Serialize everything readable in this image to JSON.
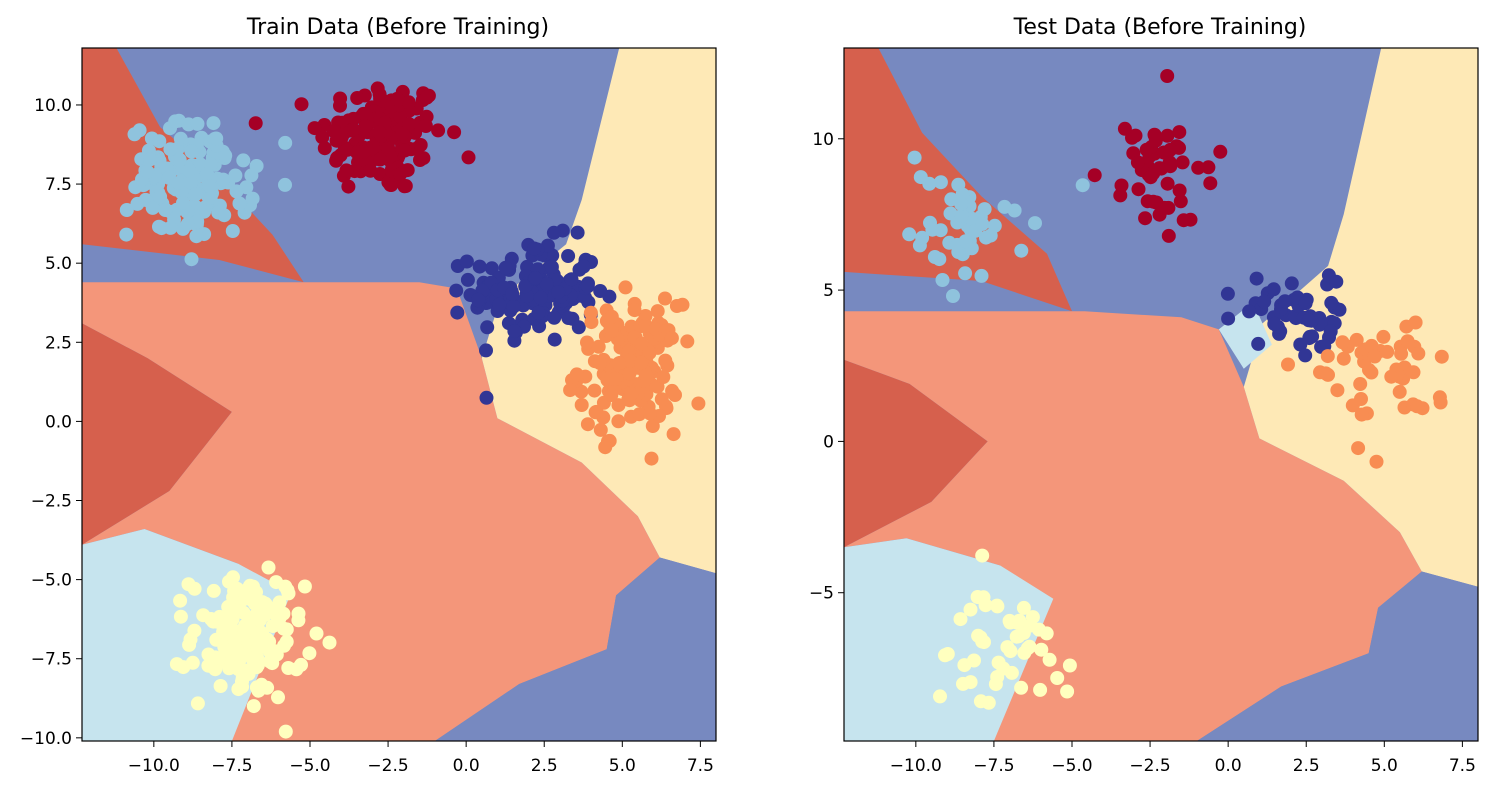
{
  "charts": [
    {
      "type": "scatter",
      "title": "Train Data (Before Training)",
      "xlabel": "",
      "ylabel": "",
      "xlim": [
        -12.3,
        8.0
      ],
      "ylim": [
        -10.1,
        11.8
      ],
      "x_ticks": [
        -10.0,
        -7.5,
        -5.0,
        -2.5,
        0.0,
        2.5,
        5.0,
        7.5
      ],
      "x_tick_labels": [
        "−10.0",
        "−7.5",
        "−5.0",
        "−2.5",
        "0.0",
        "2.5",
        "5.0",
        "7.5"
      ],
      "y_ticks": [
        -10.0,
        -7.5,
        -5.0,
        -2.5,
        0.0,
        2.5,
        5.0,
        7.5,
        10.0
      ],
      "y_tick_labels": [
        "−10.0",
        "−7.5",
        "−5.0",
        "−2.5",
        "0.0",
        "2.5",
        "5.0",
        "7.5",
        "10.0"
      ],
      "grid": false,
      "legend": "none",
      "points_per_cluster": 150,
      "clusters": [
        {
          "class": 0,
          "color": "#a50026",
          "center": [
            -2.7,
            9.0
          ],
          "spread": [
            1.0,
            0.9
          ]
        },
        {
          "class": 1,
          "color": "#313695",
          "center": [
            2.2,
            4.1
          ],
          "spread": [
            1.0,
            0.8
          ]
        },
        {
          "class": 2,
          "color": "#f88d52",
          "center": [
            5.2,
            1.7
          ],
          "spread": [
            0.8,
            1.0
          ]
        },
        {
          "class": 3,
          "color": "#8fc3dd",
          "center": [
            -8.8,
            7.6
          ],
          "spread": [
            1.0,
            0.9
          ]
        },
        {
          "class": 4,
          "color": "#ffffbf",
          "center": [
            -7.0,
            -6.8
          ],
          "spread": [
            0.9,
            1.0
          ]
        }
      ],
      "regions": [
        {
          "class": "light-red",
          "color": "#d6604d",
          "polygon": [
            [
              -12.3,
              11.8
            ],
            [
              -11.2,
              11.8
            ],
            [
              -9.8,
              9.3
            ],
            [
              -7.9,
              7.7
            ],
            [
              -6.2,
              5.9
            ],
            [
              -5.2,
              4.4
            ],
            [
              -7.9,
              5.1
            ],
            [
              -12.3,
              5.6
            ]
          ]
        },
        {
          "class": "light-red",
          "color": "#d6604d",
          "polygon": [
            [
              -12.3,
              3.1
            ],
            [
              -10.2,
              2.0
            ],
            [
              -7.5,
              0.3
            ],
            [
              -9.5,
              -2.2
            ],
            [
              -12.3,
              -3.9
            ]
          ]
        },
        {
          "class": "salmon",
          "color": "#f4967a",
          "polygon": [
            [
              -12.3,
              -3.9
            ],
            [
              -9.5,
              -2.2
            ],
            [
              -7.5,
              0.3
            ],
            [
              -10.2,
              2.0
            ],
            [
              -12.3,
              3.1
            ],
            [
              -12.3,
              4.4
            ],
            [
              -6.5,
              4.4
            ],
            [
              -4.6,
              4.4
            ],
            [
              -1.5,
              4.4
            ],
            [
              -0.3,
              4.2
            ],
            [
              0.5,
              2.0
            ],
            [
              1.0,
              0.1
            ],
            [
              3.7,
              -1.3
            ],
            [
              5.5,
              -3.0
            ],
            [
              6.2,
              -4.3
            ],
            [
              4.8,
              -5.5
            ],
            [
              4.5,
              -7.2
            ],
            [
              1.7,
              -8.3
            ],
            [
              -1.0,
              -10.1
            ],
            [
              -7.5,
              -10.1
            ],
            [
              -7.3,
              -4.5
            ],
            [
              -10.3,
              -3.4
            ],
            [
              -12.3,
              -3.9
            ]
          ]
        },
        {
          "class": "light-yellow",
          "color": "#fee9b6",
          "polygon": [
            [
              4.9,
              11.8
            ],
            [
              8.0,
              11.8
            ],
            [
              8.0,
              -4.8
            ],
            [
              6.2,
              -4.3
            ],
            [
              5.5,
              -3.0
            ],
            [
              3.7,
              -1.3
            ],
            [
              1.0,
              0.1
            ],
            [
              0.5,
              2.0
            ],
            [
              1.1,
              3.9
            ],
            [
              3.2,
              5.6
            ],
            [
              3.7,
              7.0
            ]
          ]
        },
        {
          "class": "light-blue",
          "color": "#c6e4ee",
          "polygon": [
            [
              -12.3,
              -3.9
            ],
            [
              -10.3,
              -3.4
            ],
            [
              -7.3,
              -4.5
            ],
            [
              -5.6,
              -5.4
            ],
            [
              -7.5,
              -10.1
            ],
            [
              -12.3,
              -10.1
            ]
          ]
        },
        {
          "class": "blue-bottom-right",
          "color": "#7789c0",
          "polygon": [
            [
              8.0,
              -4.8
            ],
            [
              6.2,
              -4.3
            ],
            [
              4.8,
              -5.5
            ],
            [
              4.5,
              -7.2
            ],
            [
              1.7,
              -8.3
            ],
            [
              -1.0,
              -10.1
            ],
            [
              8.0,
              -10.1
            ]
          ]
        }
      ]
    },
    {
      "type": "scatter",
      "title": "Test Data (Before Training)",
      "xlabel": "",
      "ylabel": "",
      "xlim": [
        -12.3,
        8.0
      ],
      "ylim": [
        -9.9,
        13.0
      ],
      "x_ticks": [
        -10.0,
        -7.5,
        -5.0,
        -2.5,
        0.0,
        2.5,
        5.0,
        7.5
      ],
      "x_tick_labels": [
        "−10.0",
        "−7.5",
        "−5.0",
        "−2.5",
        "0.0",
        "2.5",
        "5.0",
        "7.5"
      ],
      "y_ticks": [
        -5,
        0,
        5,
        10
      ],
      "y_tick_labels": [
        "−5",
        "0",
        "5",
        "10"
      ],
      "grid": false,
      "legend": "none",
      "points_per_cluster": 50,
      "clusters": [
        {
          "class": 0,
          "color": "#a50026",
          "center": [
            -2.1,
            8.9
          ],
          "spread": [
            0.9,
            0.9
          ]
        },
        {
          "class": 1,
          "color": "#313695",
          "center": [
            2.0,
            4.3
          ],
          "spread": [
            0.8,
            0.7
          ]
        },
        {
          "class": 2,
          "color": "#f88d52",
          "center": [
            4.8,
            2.0
          ],
          "spread": [
            0.9,
            0.9
          ]
        },
        {
          "class": 3,
          "color": "#8fc3dd",
          "center": [
            -8.7,
            7.2
          ],
          "spread": [
            1.0,
            0.9
          ]
        },
        {
          "class": 4,
          "color": "#ffffbf",
          "center": [
            -7.2,
            -6.9
          ],
          "spread": [
            0.9,
            1.0
          ]
        }
      ],
      "regions": [
        {
          "class": "light-red",
          "color": "#d6604d",
          "polygon": [
            [
              -12.3,
              13.0
            ],
            [
              -11.2,
              13.0
            ],
            [
              -9.8,
              10.2
            ],
            [
              -7.9,
              8.1
            ],
            [
              -5.8,
              6.2
            ],
            [
              -5.0,
              4.3
            ],
            [
              -7.9,
              5.3
            ],
            [
              -12.3,
              5.6
            ]
          ]
        },
        {
          "class": "light-red",
          "color": "#d6604d",
          "polygon": [
            [
              -12.3,
              2.7
            ],
            [
              -10.2,
              1.9
            ],
            [
              -7.7,
              0.0
            ],
            [
              -9.5,
              -2.0
            ],
            [
              -12.3,
              -3.5
            ]
          ]
        },
        {
          "class": "salmon",
          "color": "#f4967a",
          "polygon": [
            [
              -12.3,
              -3.5
            ],
            [
              -9.5,
              -2.0
            ],
            [
              -7.7,
              0.0
            ],
            [
              -10.2,
              1.9
            ],
            [
              -12.3,
              2.7
            ],
            [
              -12.3,
              4.3
            ],
            [
              -6.5,
              4.3
            ],
            [
              -4.6,
              4.3
            ],
            [
              -1.5,
              4.1
            ],
            [
              -0.3,
              3.7
            ],
            [
              0.5,
              1.8
            ],
            [
              1.0,
              0.1
            ],
            [
              3.7,
              -1.3
            ],
            [
              5.5,
              -3.0
            ],
            [
              6.2,
              -4.3
            ],
            [
              4.8,
              -5.5
            ],
            [
              4.5,
              -7.0
            ],
            [
              1.7,
              -8.1
            ],
            [
              -1.0,
              -9.9
            ],
            [
              -7.5,
              -9.9
            ],
            [
              -7.3,
              -4.1
            ],
            [
              -10.3,
              -3.2
            ],
            [
              -12.3,
              -3.5
            ]
          ]
        },
        {
          "class": "light-yellow",
          "color": "#fee9b6",
          "polygon": [
            [
              4.9,
              13.0
            ],
            [
              8.0,
              13.0
            ],
            [
              8.0,
              -4.8
            ],
            [
              6.2,
              -4.3
            ],
            [
              5.5,
              -3.0
            ],
            [
              3.7,
              -1.3
            ],
            [
              1.0,
              0.1
            ],
            [
              0.5,
              1.8
            ],
            [
              1.1,
              3.9
            ],
            [
              3.2,
              5.8
            ],
            [
              3.7,
              7.5
            ]
          ]
        },
        {
          "class": "light-blue",
          "color": "#c6e4ee",
          "polygon": [
            [
              -12.3,
              -3.5
            ],
            [
              -10.3,
              -3.2
            ],
            [
              -7.3,
              -4.1
            ],
            [
              -5.6,
              -5.2
            ],
            [
              -7.5,
              -9.9
            ],
            [
              -12.3,
              -9.9
            ]
          ]
        },
        {
          "class": "light-blue",
          "color": "#c6e4ee",
          "polygon": [
            [
              -0.3,
              3.7
            ],
            [
              0.8,
              4.6
            ],
            [
              1.4,
              3.2
            ],
            [
              0.5,
              2.4
            ]
          ]
        },
        {
          "class": "blue-bottom-right",
          "color": "#7789c0",
          "polygon": [
            [
              8.0,
              -4.8
            ],
            [
              6.2,
              -4.3
            ],
            [
              4.8,
              -5.5
            ],
            [
              4.5,
              -7.0
            ],
            [
              1.7,
              -8.1
            ],
            [
              -1.0,
              -9.9
            ],
            [
              8.0,
              -9.9
            ]
          ]
        }
      ]
    }
  ],
  "background_region_color": "#7789c0"
}
